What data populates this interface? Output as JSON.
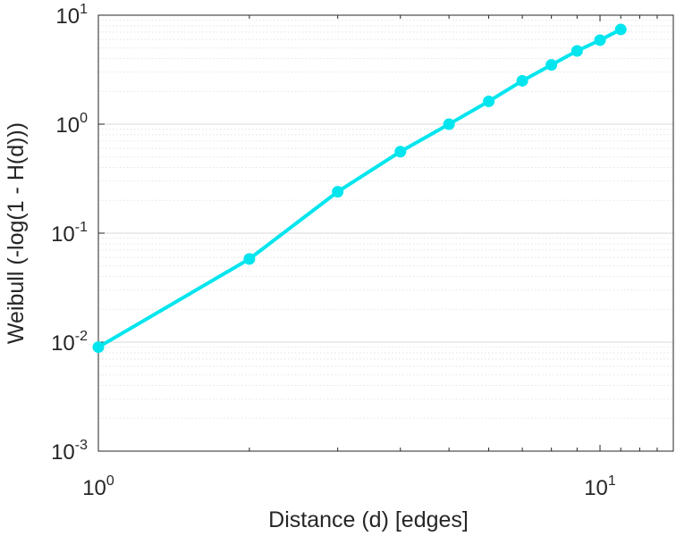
{
  "chart_data": {
    "type": "line",
    "title": "",
    "xlabel": "Distance (d) [edges]",
    "ylabel": "Weibull (-log(1 - H(d)))",
    "xscale": "log",
    "yscale": "log",
    "xlim": [
      1,
      14
    ],
    "ylim": [
      0.001,
      10
    ],
    "grid": "on (major and minor, y-axis)",
    "legend": "none",
    "x_ticks": [
      {
        "value": 1,
        "base": "10",
        "exp": "0"
      },
      {
        "value": 10,
        "base": "10",
        "exp": "1"
      }
    ],
    "y_ticks": [
      {
        "value": 0.001,
        "base": "10",
        "exp": "-3"
      },
      {
        "value": 0.01,
        "base": "10",
        "exp": "-2"
      },
      {
        "value": 0.1,
        "base": "10",
        "exp": "-1"
      },
      {
        "value": 1,
        "base": "10",
        "exp": "0"
      },
      {
        "value": 10,
        "base": "10",
        "exp": "1"
      }
    ],
    "series": [
      {
        "color": "#00e5ee",
        "marker": "circle",
        "x": [
          1,
          2,
          3,
          4,
          5,
          6,
          7,
          8,
          9,
          10,
          11
        ],
        "y": [
          0.009,
          0.058,
          0.24,
          0.56,
          1.0,
          1.62,
          2.5,
          3.5,
          4.7,
          5.9,
          7.4
        ]
      }
    ]
  }
}
